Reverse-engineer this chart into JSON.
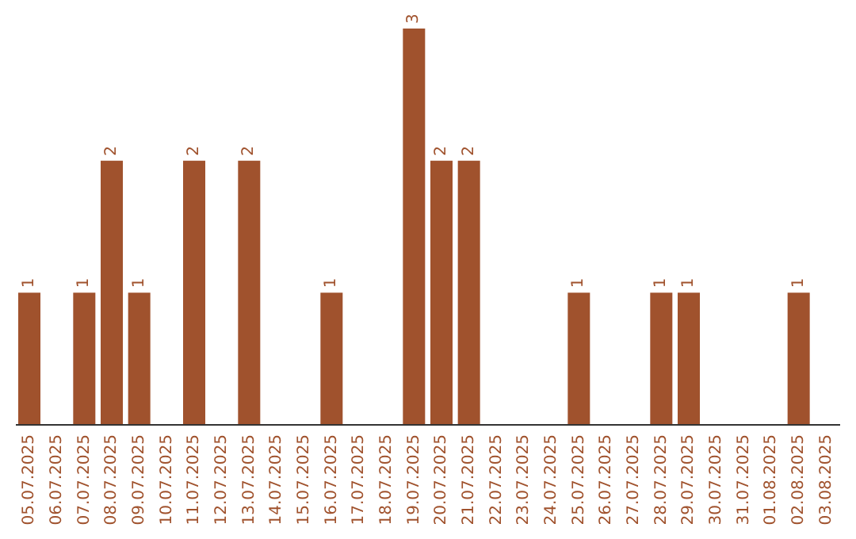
{
  "chart_data": {
    "type": "bar",
    "categories": [
      "05.07.2025",
      "06.07.2025",
      "07.07.2025",
      "08.07.2025",
      "09.07.2025",
      "10.07.2025",
      "11.07.2025",
      "12.07.2025",
      "13.07.2025",
      "14.07.2025",
      "15.07.2025",
      "16.07.2025",
      "17.07.2025",
      "18.07.2025",
      "19.07.2025",
      "20.07.2025",
      "21.07.2025",
      "22.07.2025",
      "23.07.2025",
      "24.07.2025",
      "25.07.2025",
      "26.07.2025",
      "27.07.2025",
      "28.07.2025",
      "29.07.2025",
      "30.07.2025",
      "31.07.2025",
      "01.08.2025",
      "02.08.2025",
      "03.08.2025"
    ],
    "values": [
      1,
      0,
      1,
      2,
      1,
      0,
      2,
      0,
      2,
      0,
      0,
      1,
      0,
      0,
      3,
      2,
      2,
      0,
      0,
      0,
      1,
      0,
      0,
      1,
      1,
      0,
      0,
      0,
      1,
      0
    ],
    "value_labels": [
      "1",
      null,
      "1",
      "2",
      "1",
      null,
      "2",
      null,
      "2",
      null,
      null,
      "1",
      null,
      null,
      "3",
      "2",
      "2",
      null,
      null,
      null,
      "1",
      null,
      null,
      "1",
      "1",
      null,
      null,
      null,
      "1",
      null
    ],
    "color": "#a0522d",
    "ylim": [
      0,
      3
    ],
    "grid": false,
    "legend": false
  }
}
